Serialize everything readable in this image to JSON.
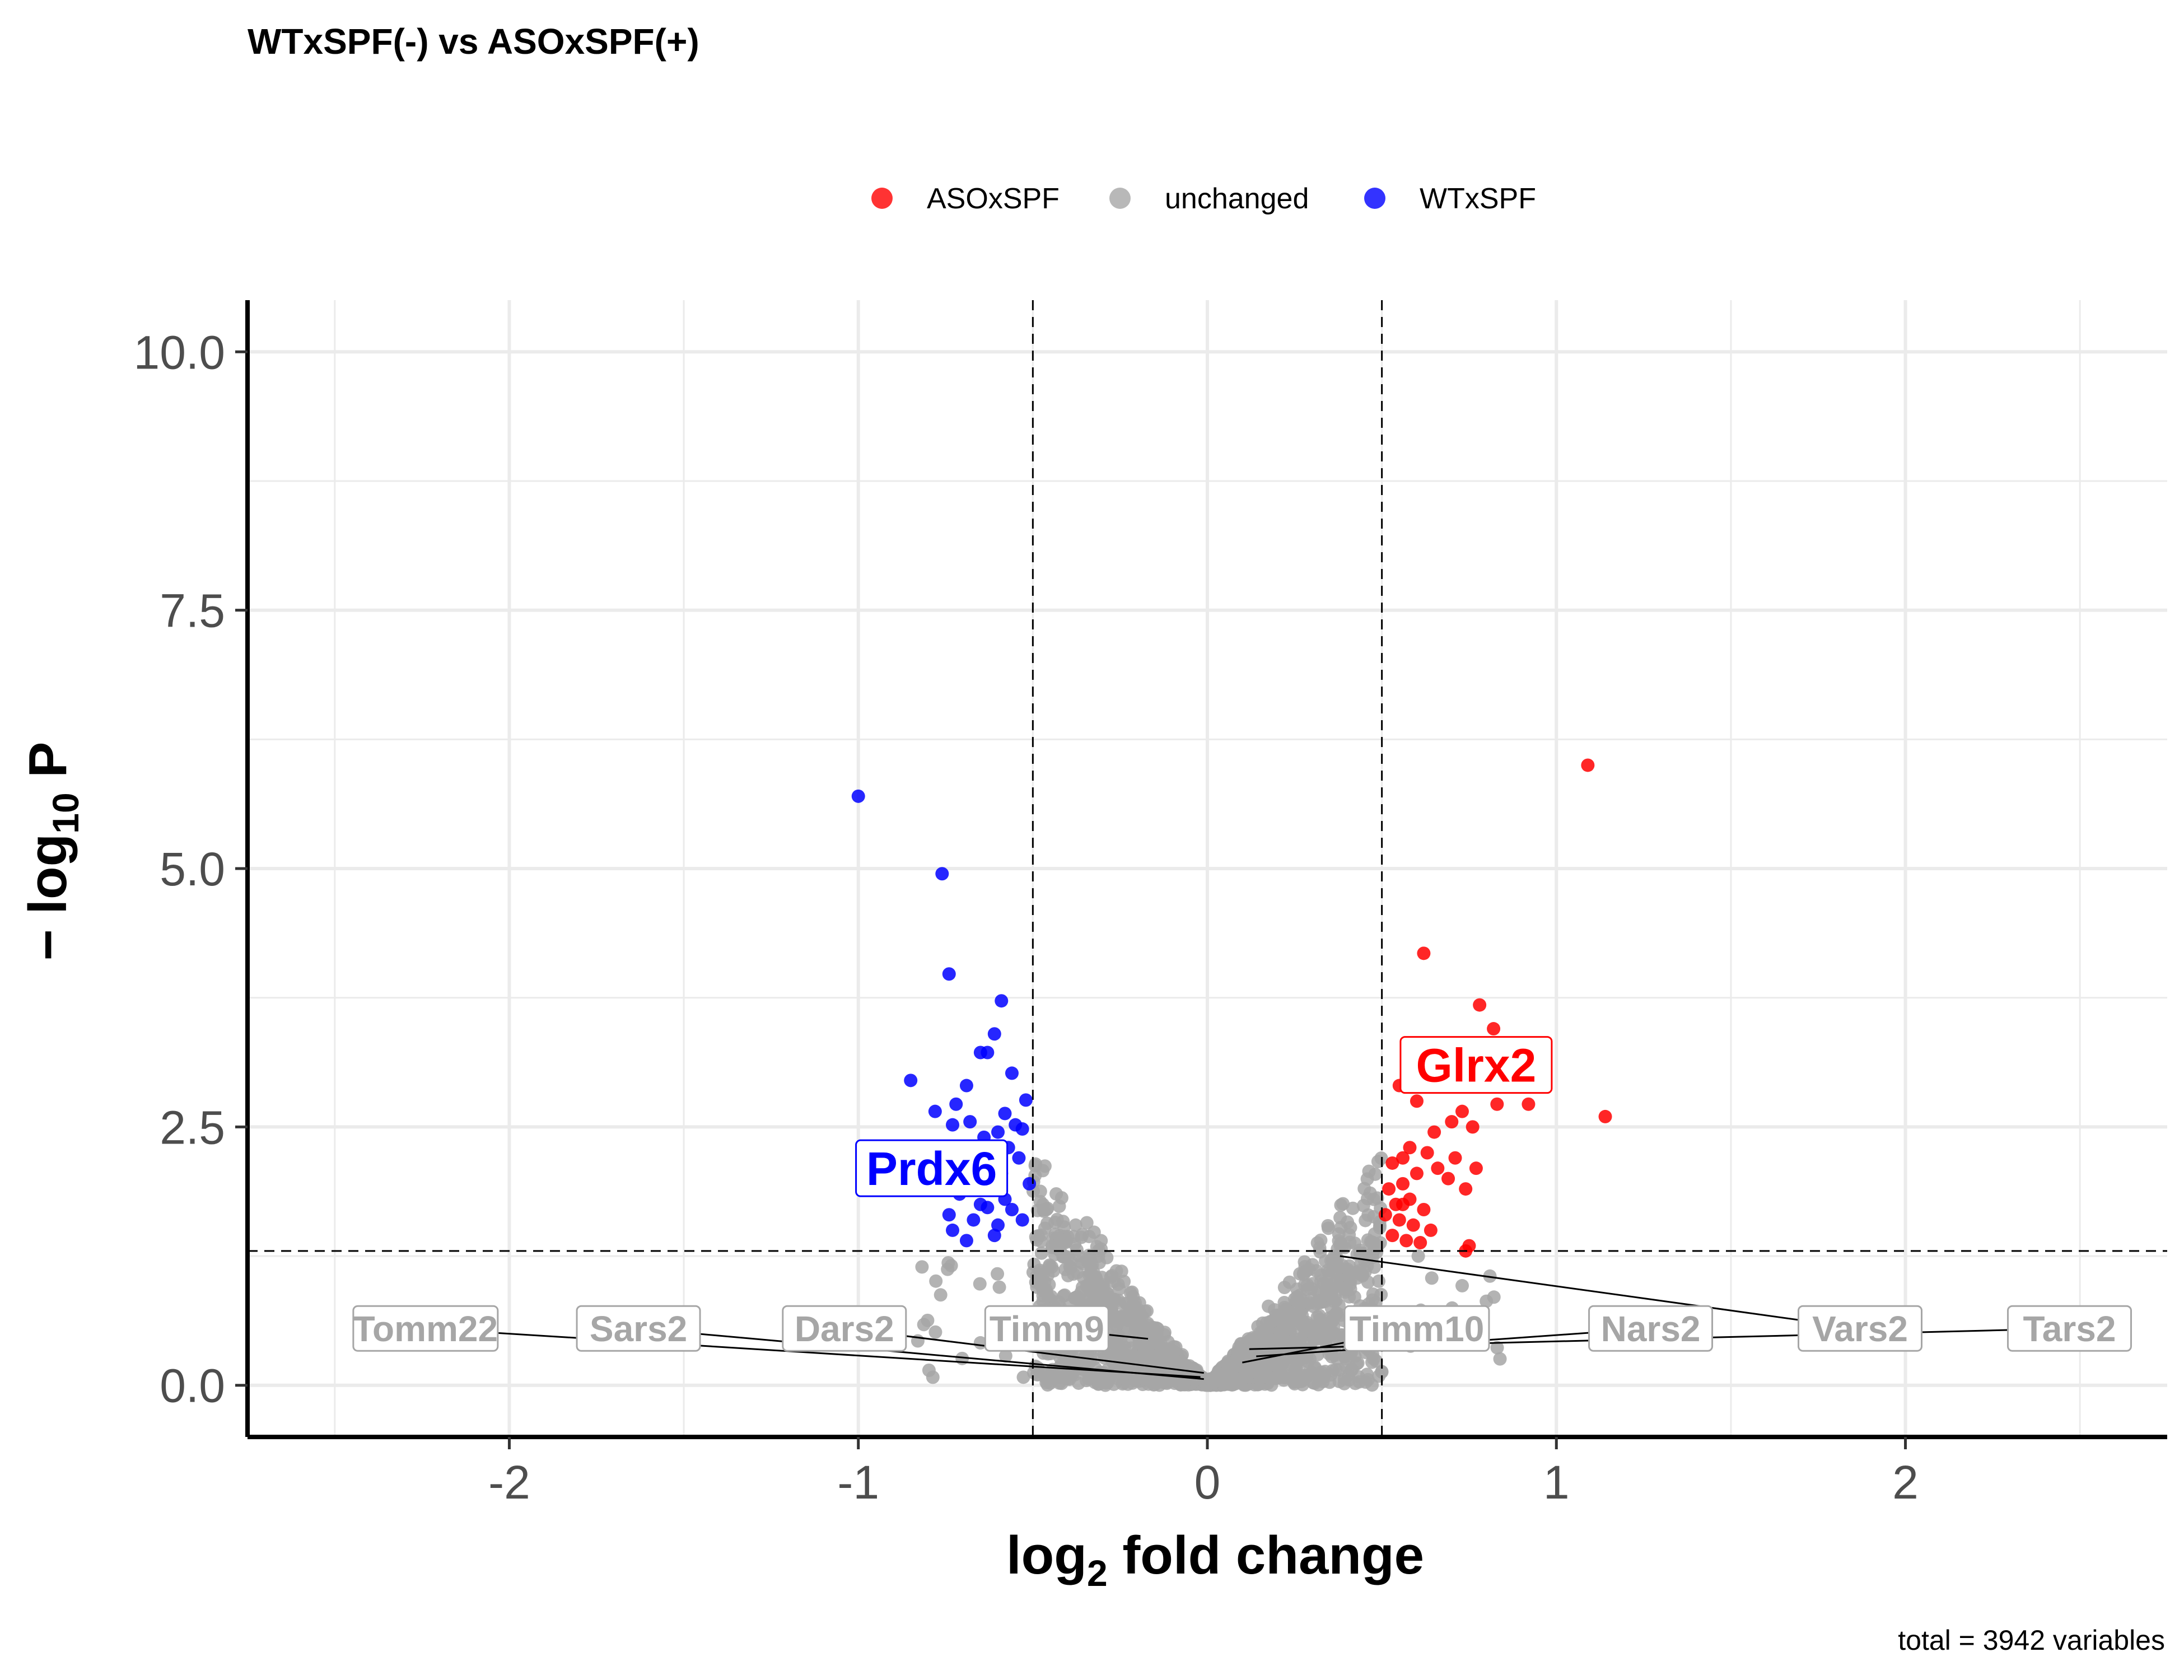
{
  "title": "WTxSPF(-) vs ASOxSPF(+)",
  "caption": "total = 3942 variables",
  "legend": [
    {
      "name": "ASOxSPF",
      "color": "#ff0000"
    },
    {
      "name": "unchanged",
      "color": "#a6a6a6"
    },
    {
      "name": "WTxSPF",
      "color": "#0000ff"
    }
  ],
  "chart_data": {
    "type": "scatter",
    "title": "WTxSPF(-) vs ASOxSPF(+)",
    "xlabel_main": "log",
    "xlabel_sub": "2",
    "xlabel_rest": " fold change",
    "ylabel_pre": "− log",
    "ylabel_sub": "10",
    "ylabel_rest": " P",
    "xlim": [
      -2.75,
      2.75
    ],
    "ylim": [
      -0.5,
      10.5
    ],
    "x_ticks": [
      {
        "value": -2,
        "label": "-2"
      },
      {
        "value": -1,
        "label": "-1"
      },
      {
        "value": 0,
        "label": "0"
      },
      {
        "value": 1,
        "label": "1"
      },
      {
        "value": 2,
        "label": "2"
      }
    ],
    "y_ticks": [
      {
        "value": 0,
        "label": "0.0"
      },
      {
        "value": 2.5,
        "label": "2.5"
      },
      {
        "value": 5,
        "label": "5.0"
      },
      {
        "value": 7.5,
        "label": "7.5"
      },
      {
        "value": 10,
        "label": "10.0"
      }
    ],
    "fc_cutoff": 0.5,
    "p_cutoff": 1.3,
    "grid": true,
    "legend_position": "top",
    "series": [
      {
        "name": "WTxSPF",
        "color": "#0000ff",
        "points": [
          [
            -1.0,
            5.7
          ],
          [
            -0.76,
            4.95
          ],
          [
            -0.74,
            3.98
          ],
          [
            -0.59,
            3.72
          ],
          [
            -0.61,
            3.4
          ],
          [
            -0.63,
            3.22
          ],
          [
            -0.65,
            3.22
          ],
          [
            -0.85,
            2.95
          ],
          [
            -0.69,
            2.9
          ],
          [
            -0.56,
            3.02
          ],
          [
            -0.72,
            2.72
          ],
          [
            -0.78,
            2.65
          ],
          [
            -0.52,
            2.76
          ],
          [
            -0.58,
            2.63
          ],
          [
            -0.55,
            2.52
          ],
          [
            -0.68,
            2.55
          ],
          [
            -0.53,
            2.48
          ],
          [
            -0.73,
            2.52
          ],
          [
            -0.6,
            2.45
          ],
          [
            -0.64,
            2.4
          ],
          [
            -0.57,
            2.3
          ],
          [
            -0.7,
            2.25
          ],
          [
            -0.54,
            2.2
          ],
          [
            -0.66,
            2.15
          ],
          [
            -0.59,
            2.05
          ],
          [
            -0.62,
            2.0
          ],
          [
            -0.51,
            1.95
          ],
          [
            -0.77,
            1.9
          ],
          [
            -0.71,
            1.85
          ],
          [
            -0.65,
            1.75
          ],
          [
            -0.63,
            1.72
          ],
          [
            -0.74,
            1.65
          ],
          [
            -0.56,
            1.7
          ],
          [
            -0.6,
            1.55
          ],
          [
            -0.67,
            1.6
          ],
          [
            -0.73,
            1.5
          ],
          [
            -0.61,
            1.45
          ],
          [
            -0.53,
            1.6
          ],
          [
            -0.58,
            1.8
          ],
          [
            -0.69,
            1.4
          ]
        ]
      },
      {
        "name": "ASOxSPF",
        "color": "#ff0000",
        "points": [
          [
            1.09,
            6.0
          ],
          [
            0.62,
            4.18
          ],
          [
            0.78,
            3.68
          ],
          [
            0.82,
            3.45
          ],
          [
            1.14,
            2.6
          ],
          [
            0.92,
            2.72
          ],
          [
            0.83,
            2.72
          ],
          [
            0.55,
            2.9
          ],
          [
            0.61,
            2.95
          ],
          [
            0.68,
            3.0
          ],
          [
            0.73,
            2.65
          ],
          [
            0.6,
            2.75
          ],
          [
            0.7,
            2.55
          ],
          [
            0.76,
            2.5
          ],
          [
            0.65,
            2.45
          ],
          [
            0.58,
            2.3
          ],
          [
            0.56,
            2.2
          ],
          [
            0.63,
            2.25
          ],
          [
            0.71,
            2.2
          ],
          [
            0.77,
            2.1
          ],
          [
            0.66,
            2.1
          ],
          [
            0.53,
            2.15
          ],
          [
            0.6,
            2.05
          ],
          [
            0.69,
            2.0
          ],
          [
            0.56,
            1.95
          ],
          [
            0.52,
            1.9
          ],
          [
            0.74,
            1.9
          ],
          [
            0.58,
            1.8
          ],
          [
            0.54,
            1.75
          ],
          [
            0.62,
            1.7
          ],
          [
            0.51,
            1.65
          ],
          [
            0.55,
            1.6
          ],
          [
            0.59,
            1.55
          ],
          [
            0.64,
            1.5
          ],
          [
            0.53,
            1.45
          ],
          [
            0.57,
            1.4
          ],
          [
            0.61,
            1.38
          ],
          [
            0.75,
            1.35
          ],
          [
            0.74,
            1.3
          ],
          [
            0.56,
            1.75
          ]
        ]
      },
      {
        "name": "unchanged",
        "color": "#a6a6a6",
        "points": "generated-cloud"
      }
    ],
    "labels": [
      {
        "text": "Prdx6",
        "color": "#0000ff",
        "x": -0.79,
        "y": 2.1,
        "boxed": true
      },
      {
        "text": "Glrx2",
        "color": "#ff0000",
        "x": 0.77,
        "y": 3.1,
        "boxed": true
      }
    ],
    "connector_labels": [
      {
        "text": "Tomm22",
        "x": -2.24,
        "y": 0.55,
        "px": -0.02,
        "py": 0.08
      },
      {
        "text": "Sars2",
        "x": -1.63,
        "y": 0.55,
        "px": -0.01,
        "py": 0.06
      },
      {
        "text": "Dars2",
        "x": -1.04,
        "y": 0.55,
        "px": -0.01,
        "py": 0.12
      },
      {
        "text": "Timm9",
        "x": -0.46,
        "y": 0.55,
        "px": -0.17,
        "py": 0.45
      },
      {
        "text": "Timm10",
        "x": 0.6,
        "y": 0.55,
        "px": 0.1,
        "py": 0.22
      },
      {
        "text": "Nars2",
        "x": 1.27,
        "y": 0.55,
        "px": 0.14,
        "py": 0.28
      },
      {
        "text": "Vars2",
        "x": 1.87,
        "y": 0.55,
        "px": 0.38,
        "py": 1.25
      },
      {
        "text": "Tars2",
        "x": 2.47,
        "y": 0.55,
        "px": 0.12,
        "py": 0.35
      }
    ]
  }
}
